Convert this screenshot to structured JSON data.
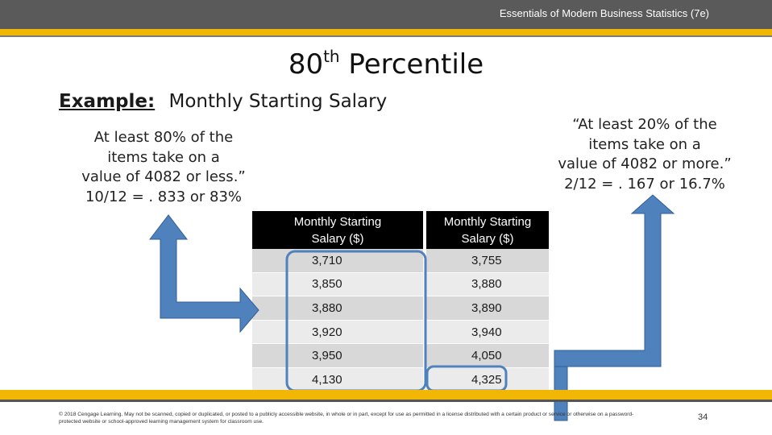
{
  "header": {
    "book_title": "Essentials of Modern Business Statistics (7e)"
  },
  "slide": {
    "title_main": "80",
    "title_sup": "th",
    "title_rest": " Percentile",
    "example_label": "Example:",
    "example_text": "Monthly Starting Salary",
    "left_note": [
      "At least 80% of the",
      "items take on a",
      "value of 4082  or less.”",
      "10/12 = . 833 or 83%"
    ],
    "right_note": [
      "“At least 20% of the",
      "items take on a",
      "value of 4082 or more.”",
      "2/12 = . 167 or 16.7%"
    ]
  },
  "table": {
    "headers": [
      "Monthly Starting\nSalary ($)",
      "Monthly Starting\nSalary ($)"
    ],
    "header_lines": [
      [
        "Monthly Starting",
        "Salary ($)"
      ],
      [
        "Monthly Starting",
        "Salary ($)"
      ]
    ],
    "rows": [
      [
        "3,710",
        "3,755"
      ],
      [
        "3,850",
        "3,880"
      ],
      [
        "3,880",
        "3,890"
      ],
      [
        "3,920",
        "3,940"
      ],
      [
        "3,950",
        "4,050"
      ],
      [
        "4,130",
        "4,325"
      ]
    ]
  },
  "footer": {
    "copyright": "© 2018 Cengage Learning.  May not be scanned, copied or duplicated, or posted to a publicly accessible website, in whole or in part, except for use as permitted in a license distributed with a certain product or service or otherwise on a password-protected website or school-approved learning management system for classroom use.",
    "page_number": "34"
  },
  "colors": {
    "accent_gold": "#f2b705",
    "arrow_blue": "#4f81bd",
    "header_gray": "#5a5a5a"
  }
}
